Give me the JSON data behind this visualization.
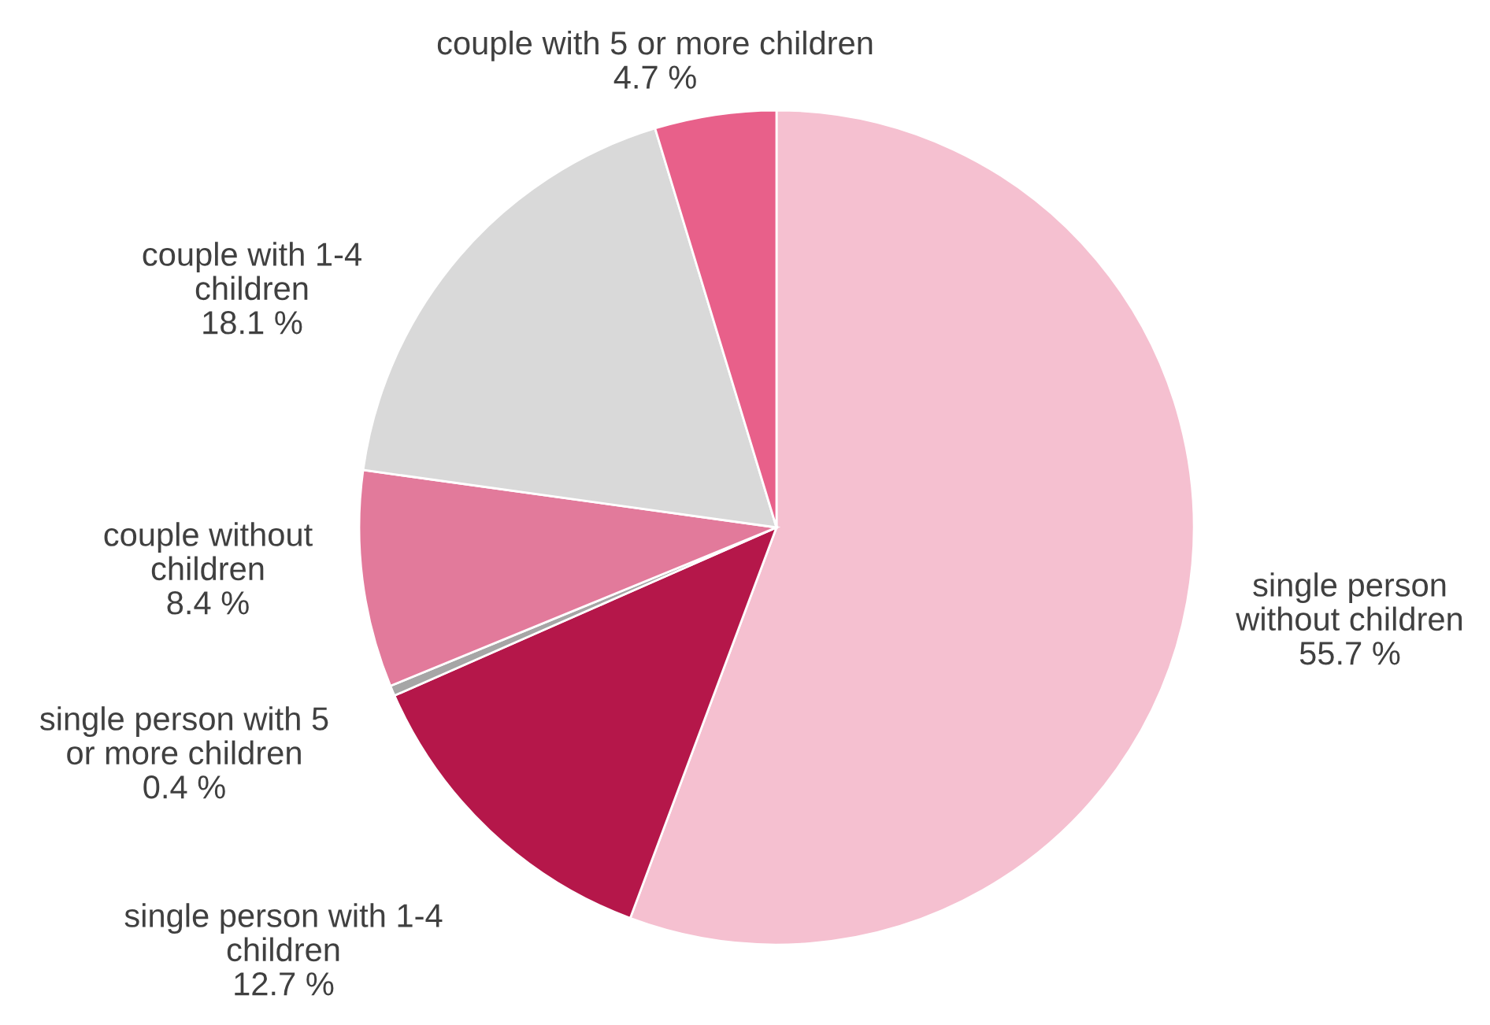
{
  "chart_data": {
    "type": "pie",
    "categories": [
      "single person\nwithout children",
      "single person with 1-4\nchildren",
      "single person with 5\nor more children",
      "couple without\nchildren",
      "couple with 1-4\nchildren",
      "couple with 5 or more children"
    ],
    "values": [
      55.7,
      12.7,
      0.4,
      8.4,
      18.1,
      4.7
    ],
    "value_labels": [
      "55.7 %",
      "12.7 %",
      "0.4 %",
      "8.4 %",
      "18.1 %",
      "4.7 %"
    ],
    "colors": [
      "#f5c0d0",
      "#b5174a",
      "#a6a6a6",
      "#e27a9b",
      "#d9d9d9",
      "#e8608a"
    ]
  }
}
